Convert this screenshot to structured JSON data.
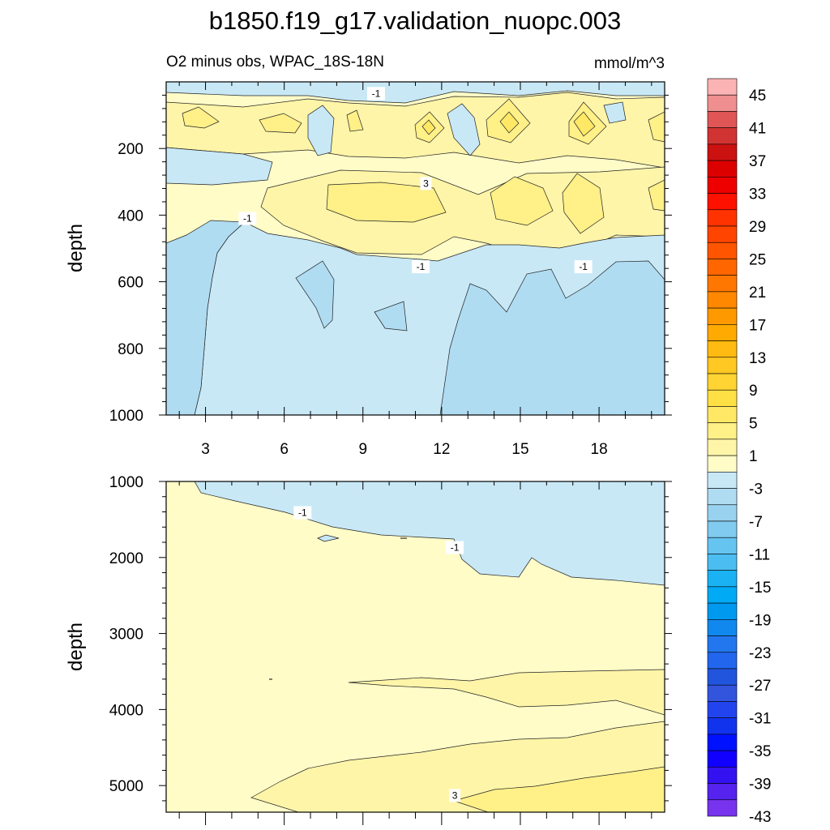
{
  "title": "b1850.f19_g17.validation_nuopc.003",
  "subtitle_left": "O2 minus obs, WPAC_18S-18N",
  "subtitle_right": "mmol/m^3",
  "chart_data": [
    {
      "type": "heatmap",
      "panel": "upper",
      "xlabel": "",
      "ylabel": "depth",
      "xlim": [
        1.5,
        20.5
      ],
      "ylim": [
        1000,
        0
      ],
      "x_ticks": [
        "3",
        "6",
        "9",
        "12",
        "15",
        "18"
      ],
      "y_ticks": [
        "200",
        "400",
        "600",
        "800",
        "1000"
      ],
      "contour_labels": [
        {
          "text": "-1",
          "x": 9.5,
          "depth": 35
        },
        {
          "text": "3",
          "x": 11.4,
          "depth": 305
        },
        {
          "text": "-1",
          "x": 4.6,
          "depth": 410
        },
        {
          "text": "-1",
          "x": 11.2,
          "depth": 555
        },
        {
          "text": "-1",
          "x": 17.4,
          "depth": 555
        }
      ]
    },
    {
      "type": "heatmap",
      "panel": "lower",
      "xlabel": "",
      "ylabel": "depth",
      "xlim": [
        1.5,
        20.5
      ],
      "ylim": [
        1000,
        5350
      ],
      "y_ticks": [
        "1000",
        "2000",
        "3000",
        "4000",
        "5000"
      ],
      "contour_labels": [
        {
          "text": "-1",
          "x": 6.7,
          "depth": 1410
        },
        {
          "text": "-1",
          "x": 12.5,
          "depth": 1870
        },
        {
          "text": "3",
          "x": 12.5,
          "depth": 5130
        }
      ]
    }
  ],
  "colorbar": {
    "labels": [
      "45",
      "41",
      "37",
      "33",
      "29",
      "25",
      "21",
      "17",
      "13",
      "9",
      "5",
      "1",
      "-3",
      "-7",
      "-11",
      "-15",
      "-19",
      "-23",
      "-27",
      "-31",
      "-35",
      "-39",
      "-43"
    ],
    "colors": [
      "#fbb3b4",
      "#f08f8f",
      "#e05555",
      "#d13333",
      "#cc1111",
      "#dd0000",
      "#ee0000",
      "#ff1100",
      "#ff3300",
      "#ff4400",
      "#ff5500",
      "#ff6600",
      "#ff7700",
      "#ff8800",
      "#ff9900",
      "#ffaa00",
      "#ffbb11",
      "#ffc822",
      "#ffd433",
      "#ffe044",
      "#ffe866",
      "#fff088",
      "#fff5a8",
      "#fffcc8",
      "#c8e8f6",
      "#b0dcf2",
      "#98d2ef",
      "#80cbef",
      "#66c4f1",
      "#4cbdf1",
      "#1ab2f2",
      "#00aaf4",
      "#0099f0",
      "#1188ee",
      "#2277ee",
      "#2266ee",
      "#2255dd",
      "#3355dd",
      "#2244ee",
      "#1133ee",
      "#0011ff",
      "#1100ff",
      "#3311f0",
      "#5522ee",
      "#7733ee"
    ]
  },
  "field_colors": {
    "neg3": "#b0dcf2",
    "neg1": "#c8e8f6",
    "pos1": "#fffcc8",
    "pos3": "#fff5a8",
    "pos5": "#fff088",
    "pos7": "#ffe866",
    "pos9": "#ffe044"
  }
}
